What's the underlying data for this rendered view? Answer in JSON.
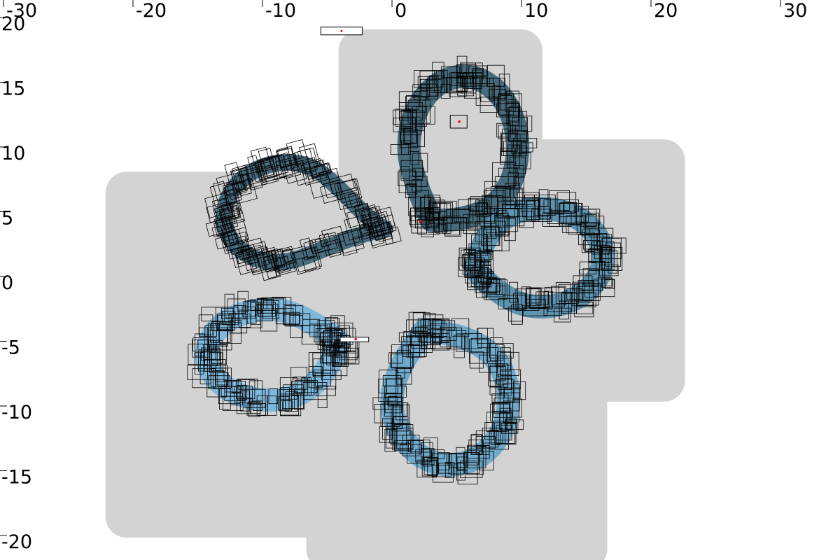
{
  "chart_data": {
    "type": "scatter",
    "xlim": [
      -30,
      30
    ],
    "ylim": [
      -20,
      20
    ],
    "x_ticks": [
      "-30",
      "-20",
      "-10",
      "0",
      "10",
      "20",
      "30"
    ],
    "y_ticks": [
      "20",
      "15",
      "10",
      "5",
      "0",
      "-5",
      "-10",
      "-15",
      "-20"
    ],
    "grid": false,
    "legend": "none",
    "workspace_region": {
      "color": "#d3d3d3",
      "polygon": [
        [
          -20.5,
          7
        ],
        [
          -2.5,
          7
        ],
        [
          -2.5,
          18
        ],
        [
          10,
          18
        ],
        [
          10,
          9.5
        ],
        [
          21,
          9.5
        ],
        [
          21,
          -7.5
        ],
        [
          15,
          -7.5
        ],
        [
          15,
          -20.5
        ],
        [
          -5,
          -20.5
        ],
        [
          -5,
          -18
        ],
        [
          -20.5,
          -18
        ]
      ]
    },
    "lobes": [
      {
        "name": "top",
        "cx": 5.5,
        "cy": 10.5,
        "rx": 4.2,
        "ry": 5.5,
        "rot": 0,
        "width": 1.8,
        "stem": [
          3.0,
          4.8
        ],
        "inner": "#3f6577",
        "explored": true
      },
      {
        "name": "left",
        "cx": -8.5,
        "cy": 5.5,
        "rx": 4.5,
        "ry": 3.8,
        "rot": -15,
        "width": 1.3,
        "stem": [
          -0.8,
          2.0
        ],
        "inner": "#3f6577",
        "explored": true
      },
      {
        "name": "right",
        "cx": 11.5,
        "cy": 2.0,
        "rx": 4.8,
        "ry": 3.8,
        "rot": 0,
        "width": 1.8,
        "stem": [
          6.5,
          1.0
        ],
        "inner": "#5890ae",
        "explored": true
      },
      {
        "name": "bottom",
        "cx": 4.5,
        "cy": -9.0,
        "rx": 4.5,
        "ry": 5.0,
        "rot": 0,
        "width": 1.8,
        "stem": [
          2.5,
          -3.5
        ],
        "inner": "#6aa6c9",
        "explored": true
      },
      {
        "name": "bottom-left",
        "cx": -9.5,
        "cy": -5.5,
        "rx": 4.8,
        "ry": 3.5,
        "rot": 0,
        "width": 1.8,
        "stem": [
          -4.0,
          -4.5
        ],
        "inner": "#7ab6db",
        "explored": true
      }
    ],
    "start_point": {
      "x": 2.2,
      "y": 4.8,
      "color": "#ff0000"
    },
    "goal_point": {
      "x": 5.2,
      "y": 12.5,
      "color": "#ff0000"
    },
    "agent_point": {
      "x": -2.8,
      "y": -4.3,
      "color": "#ff0000"
    },
    "goal_box": {
      "x": 4.5,
      "y": 12.0,
      "w": 1.3,
      "h": 1.0
    },
    "agent_box": {
      "x": -4.0,
      "y": -4.5,
      "w": 2.2,
      "h": 0.35
    },
    "legend_box": {
      "x": -5.5,
      "y": 19.2,
      "w": 3.2,
      "h": 0.6
    },
    "colors": {
      "workspace": "#d3d3d3",
      "explored_dark": "#3d6375",
      "explored_light": "#7bb7dc",
      "box_stroke": "#000000",
      "path_line": "#5a8aa0"
    }
  }
}
